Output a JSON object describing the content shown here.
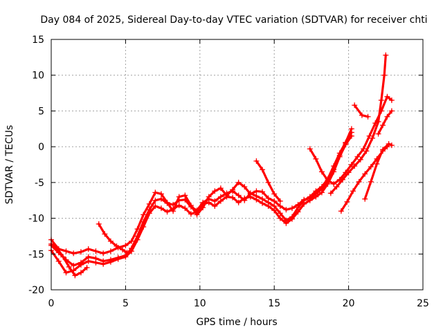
{
  "chart_data": {
    "type": "scatter",
    "title": "Day 084 of 2025, Sidereal Day-to-day VTEC variation (SDTVAR) for receiver chti",
    "xlabel": "GPS time / hours",
    "ylabel": "SDTVAR / TECUs",
    "xlim": [
      0,
      25
    ],
    "ylim": [
      -20,
      15
    ],
    "xticks": [
      0,
      5,
      10,
      15,
      20,
      25
    ],
    "yticks": [
      -20,
      -15,
      -10,
      -5,
      0,
      5,
      10,
      15
    ],
    "grid": true,
    "marker": "+",
    "color": "#ff0000",
    "series": [
      {
        "name": "trace-1",
        "points": [
          [
            0,
            -13
          ],
          [
            0.5,
            -14.3
          ],
          [
            1,
            -14.6
          ],
          [
            1.5,
            -14.9
          ],
          [
            2,
            -14.7
          ],
          [
            2.5,
            -14.3
          ],
          [
            3,
            -14.6
          ],
          [
            3.5,
            -14.9
          ],
          [
            4,
            -14.6
          ],
          [
            4.5,
            -14.1
          ],
          [
            5,
            -13.8
          ],
          [
            5.4,
            -13.2
          ],
          [
            5.8,
            -11.5
          ],
          [
            6.2,
            -9.5
          ],
          [
            6.6,
            -8
          ],
          [
            7,
            -6.4
          ],
          [
            7.4,
            -6.6
          ],
          [
            7.8,
            -7.8
          ],
          [
            8.2,
            -9
          ],
          [
            8.6,
            -7
          ],
          [
            9,
            -6.8
          ],
          [
            9.4,
            -8.2
          ],
          [
            9.8,
            -9.5
          ],
          [
            10.2,
            -8.5
          ],
          [
            10.6,
            -7
          ],
          [
            11,
            -6.2
          ],
          [
            11.4,
            -5.8
          ],
          [
            11.8,
            -6.8
          ],
          [
            12.2,
            -6
          ],
          [
            12.6,
            -5
          ],
          [
            13,
            -5.6
          ],
          [
            13.4,
            -6.6
          ],
          [
            13.8,
            -6.2
          ],
          [
            14.2,
            -6.3
          ],
          [
            14.6,
            -7.2
          ],
          [
            15,
            -7.6
          ],
          [
            15.4,
            -8.3
          ],
          [
            15.8,
            -8.8
          ],
          [
            16.2,
            -8.6
          ],
          [
            16.6,
            -8.1
          ],
          [
            17,
            -7.4
          ],
          [
            17.4,
            -7.2
          ],
          [
            17.8,
            -6.6
          ],
          [
            18.2,
            -5.9
          ],
          [
            18.6,
            -4.9
          ],
          [
            19,
            -3.2
          ],
          [
            19.4,
            -1.2
          ],
          [
            19.8,
            0.5
          ],
          [
            20.2,
            2
          ]
        ]
      },
      {
        "name": "trace-2",
        "points": [
          [
            0,
            -13.8
          ],
          [
            0.5,
            -14.8
          ],
          [
            1,
            -15.8
          ],
          [
            1.5,
            -16.6
          ],
          [
            2,
            -16.2
          ],
          [
            2.5,
            -15.4
          ],
          [
            3,
            -15.6
          ],
          [
            3.5,
            -16
          ],
          [
            4,
            -15.8
          ],
          [
            4.5,
            -15.5
          ],
          [
            5,
            -15.2
          ],
          [
            5.4,
            -14.2
          ],
          [
            5.8,
            -12.5
          ],
          [
            6.2,
            -10.5
          ],
          [
            6.6,
            -8.8
          ],
          [
            7,
            -7.5
          ],
          [
            7.4,
            -7.3
          ],
          [
            7.8,
            -7.9
          ],
          [
            8.2,
            -8.1
          ],
          [
            8.6,
            -7.5
          ],
          [
            9,
            -7.4
          ],
          [
            9.4,
            -8.4
          ],
          [
            9.8,
            -8.9
          ],
          [
            10.2,
            -7.8
          ],
          [
            10.6,
            -7.3
          ],
          [
            11,
            -7.6
          ],
          [
            11.4,
            -7
          ],
          [
            11.8,
            -6.5
          ],
          [
            12.2,
            -6.2
          ],
          [
            12.6,
            -6.8
          ],
          [
            13,
            -7.5
          ],
          [
            13.4,
            -6.5
          ],
          [
            13.8,
            -6.9
          ],
          [
            14.2,
            -7.3
          ],
          [
            14.6,
            -7.8
          ],
          [
            15,
            -8.3
          ],
          [
            15.4,
            -9.3
          ],
          [
            15.8,
            -10.3
          ],
          [
            16.2,
            -9.8
          ],
          [
            16.6,
            -8.5
          ],
          [
            17,
            -7.5
          ],
          [
            17.4,
            -7
          ],
          [
            17.8,
            -6.2
          ],
          [
            18.2,
            -5.6
          ],
          [
            18.6,
            -4.5
          ],
          [
            19,
            -2.7
          ],
          [
            19.4,
            -0.9
          ],
          [
            19.8,
            0.6
          ],
          [
            20.2,
            2.5
          ]
        ]
      },
      {
        "name": "trace-3",
        "points": [
          [
            0,
            -14.5
          ],
          [
            0.5,
            -16
          ],
          [
            1,
            -17.6
          ],
          [
            1.5,
            -17.3
          ],
          [
            2,
            -16.5
          ],
          [
            2.5,
            -16
          ],
          [
            3,
            -16.2
          ],
          [
            3.5,
            -16.4
          ],
          [
            4,
            -16.1
          ],
          [
            4.5,
            -15.7
          ],
          [
            5,
            -15.4
          ],
          [
            5.4,
            -14.6
          ],
          [
            5.8,
            -13
          ],
          [
            6.2,
            -11.2
          ],
          [
            6.6,
            -9.3
          ],
          [
            7,
            -8.3
          ],
          [
            7.4,
            -8.6
          ],
          [
            7.8,
            -9.1
          ],
          [
            8.2,
            -8.7
          ],
          [
            8.6,
            -8.2
          ],
          [
            9,
            -8.6
          ],
          [
            9.4,
            -9.4
          ],
          [
            9.8,
            -9.1
          ],
          [
            10.2,
            -8
          ],
          [
            10.6,
            -7.8
          ],
          [
            11,
            -8.3
          ],
          [
            11.4,
            -7.6
          ],
          [
            11.8,
            -7
          ],
          [
            12.2,
            -7.1
          ],
          [
            12.6,
            -7.8
          ],
          [
            13,
            -7.2
          ],
          [
            13.4,
            -7
          ],
          [
            13.8,
            -7.4
          ],
          [
            14.2,
            -7.9
          ],
          [
            14.6,
            -8.3
          ],
          [
            15,
            -8.9
          ],
          [
            15.4,
            -10
          ],
          [
            15.8,
            -10.7
          ],
          [
            16.2,
            -10.1
          ],
          [
            16.6,
            -9.1
          ],
          [
            17,
            -8
          ],
          [
            17.4,
            -7.5
          ],
          [
            17.8,
            -7
          ],
          [
            18.2,
            -6.4
          ],
          [
            18.6,
            -5.2
          ],
          [
            19,
            -3.5
          ],
          [
            19.4,
            -1.4
          ],
          [
            19.8,
            0.3
          ],
          [
            20.2,
            1.5
          ]
        ]
      },
      {
        "name": "trace-4",
        "points": [
          [
            3.2,
            -10.8
          ],
          [
            3.6,
            -12.2
          ],
          [
            4,
            -13.2
          ],
          [
            4.4,
            -13.9
          ],
          [
            4.8,
            -14.4
          ],
          [
            5.1,
            -14.8
          ]
        ]
      },
      {
        "name": "trace-5",
        "points": [
          [
            0,
            -13.6
          ],
          [
            0.4,
            -14.2
          ],
          [
            0.8,
            -15.4
          ],
          [
            1.2,
            -16.8
          ],
          [
            1.6,
            -18
          ],
          [
            2,
            -17.6
          ],
          [
            2.4,
            -16.9
          ]
        ]
      },
      {
        "name": "trace-6",
        "points": [
          [
            13.8,
            -2
          ],
          [
            14.2,
            -3.2
          ],
          [
            14.6,
            -5
          ],
          [
            15,
            -6.6
          ],
          [
            15.4,
            -7.6
          ]
        ]
      },
      {
        "name": "trace-7",
        "points": [
          [
            17.4,
            -0.3
          ],
          [
            17.8,
            -1.7
          ],
          [
            18.2,
            -3.5
          ],
          [
            18.6,
            -4.7
          ],
          [
            19,
            -5.2
          ],
          [
            19.4,
            -4.6
          ],
          [
            19.8,
            -3.6
          ],
          [
            20.2,
            -2.5
          ],
          [
            20.6,
            -1.4
          ],
          [
            21,
            -0.3
          ],
          [
            21.4,
            1.5
          ],
          [
            21.8,
            3.3
          ],
          [
            22.2,
            5
          ],
          [
            22.6,
            7
          ],
          [
            22.9,
            6.5
          ]
        ]
      },
      {
        "name": "trace-8",
        "points": [
          [
            18.8,
            -6.5
          ],
          [
            19.2,
            -5.6
          ],
          [
            19.6,
            -4.6
          ],
          [
            20,
            -3.6
          ],
          [
            20.4,
            -2.7
          ],
          [
            20.8,
            -1.8
          ],
          [
            21.2,
            -0.6
          ],
          [
            21.6,
            1.2
          ],
          [
            22,
            3.5
          ],
          [
            22.2,
            6.5
          ],
          [
            22.4,
            10
          ],
          [
            22.5,
            12.8
          ]
        ]
      },
      {
        "name": "trace-9",
        "points": [
          [
            19.5,
            -9
          ],
          [
            19.9,
            -7.7
          ],
          [
            20.3,
            -6.2
          ],
          [
            20.7,
            -4.9
          ],
          [
            21.1,
            -3.8
          ],
          [
            21.5,
            -2.8
          ],
          [
            21.9,
            -1.7
          ],
          [
            22.3,
            -0.6
          ],
          [
            22.6,
            0
          ]
        ]
      },
      {
        "name": "trace-10",
        "points": [
          [
            21.1,
            -7.3
          ],
          [
            21.5,
            -4.9
          ],
          [
            21.9,
            -2.4
          ],
          [
            22.3,
            -0.4
          ],
          [
            22.7,
            0.4
          ],
          [
            22.9,
            0.2
          ]
        ]
      },
      {
        "name": "trace-11",
        "points": [
          [
            22,
            1.8
          ],
          [
            22.3,
            3
          ],
          [
            22.6,
            4.2
          ],
          [
            22.9,
            5
          ]
        ]
      },
      {
        "name": "trace-12",
        "points": [
          [
            20.4,
            5.8
          ],
          [
            20.9,
            4.4
          ],
          [
            21.3,
            4.2
          ]
        ]
      }
    ]
  }
}
